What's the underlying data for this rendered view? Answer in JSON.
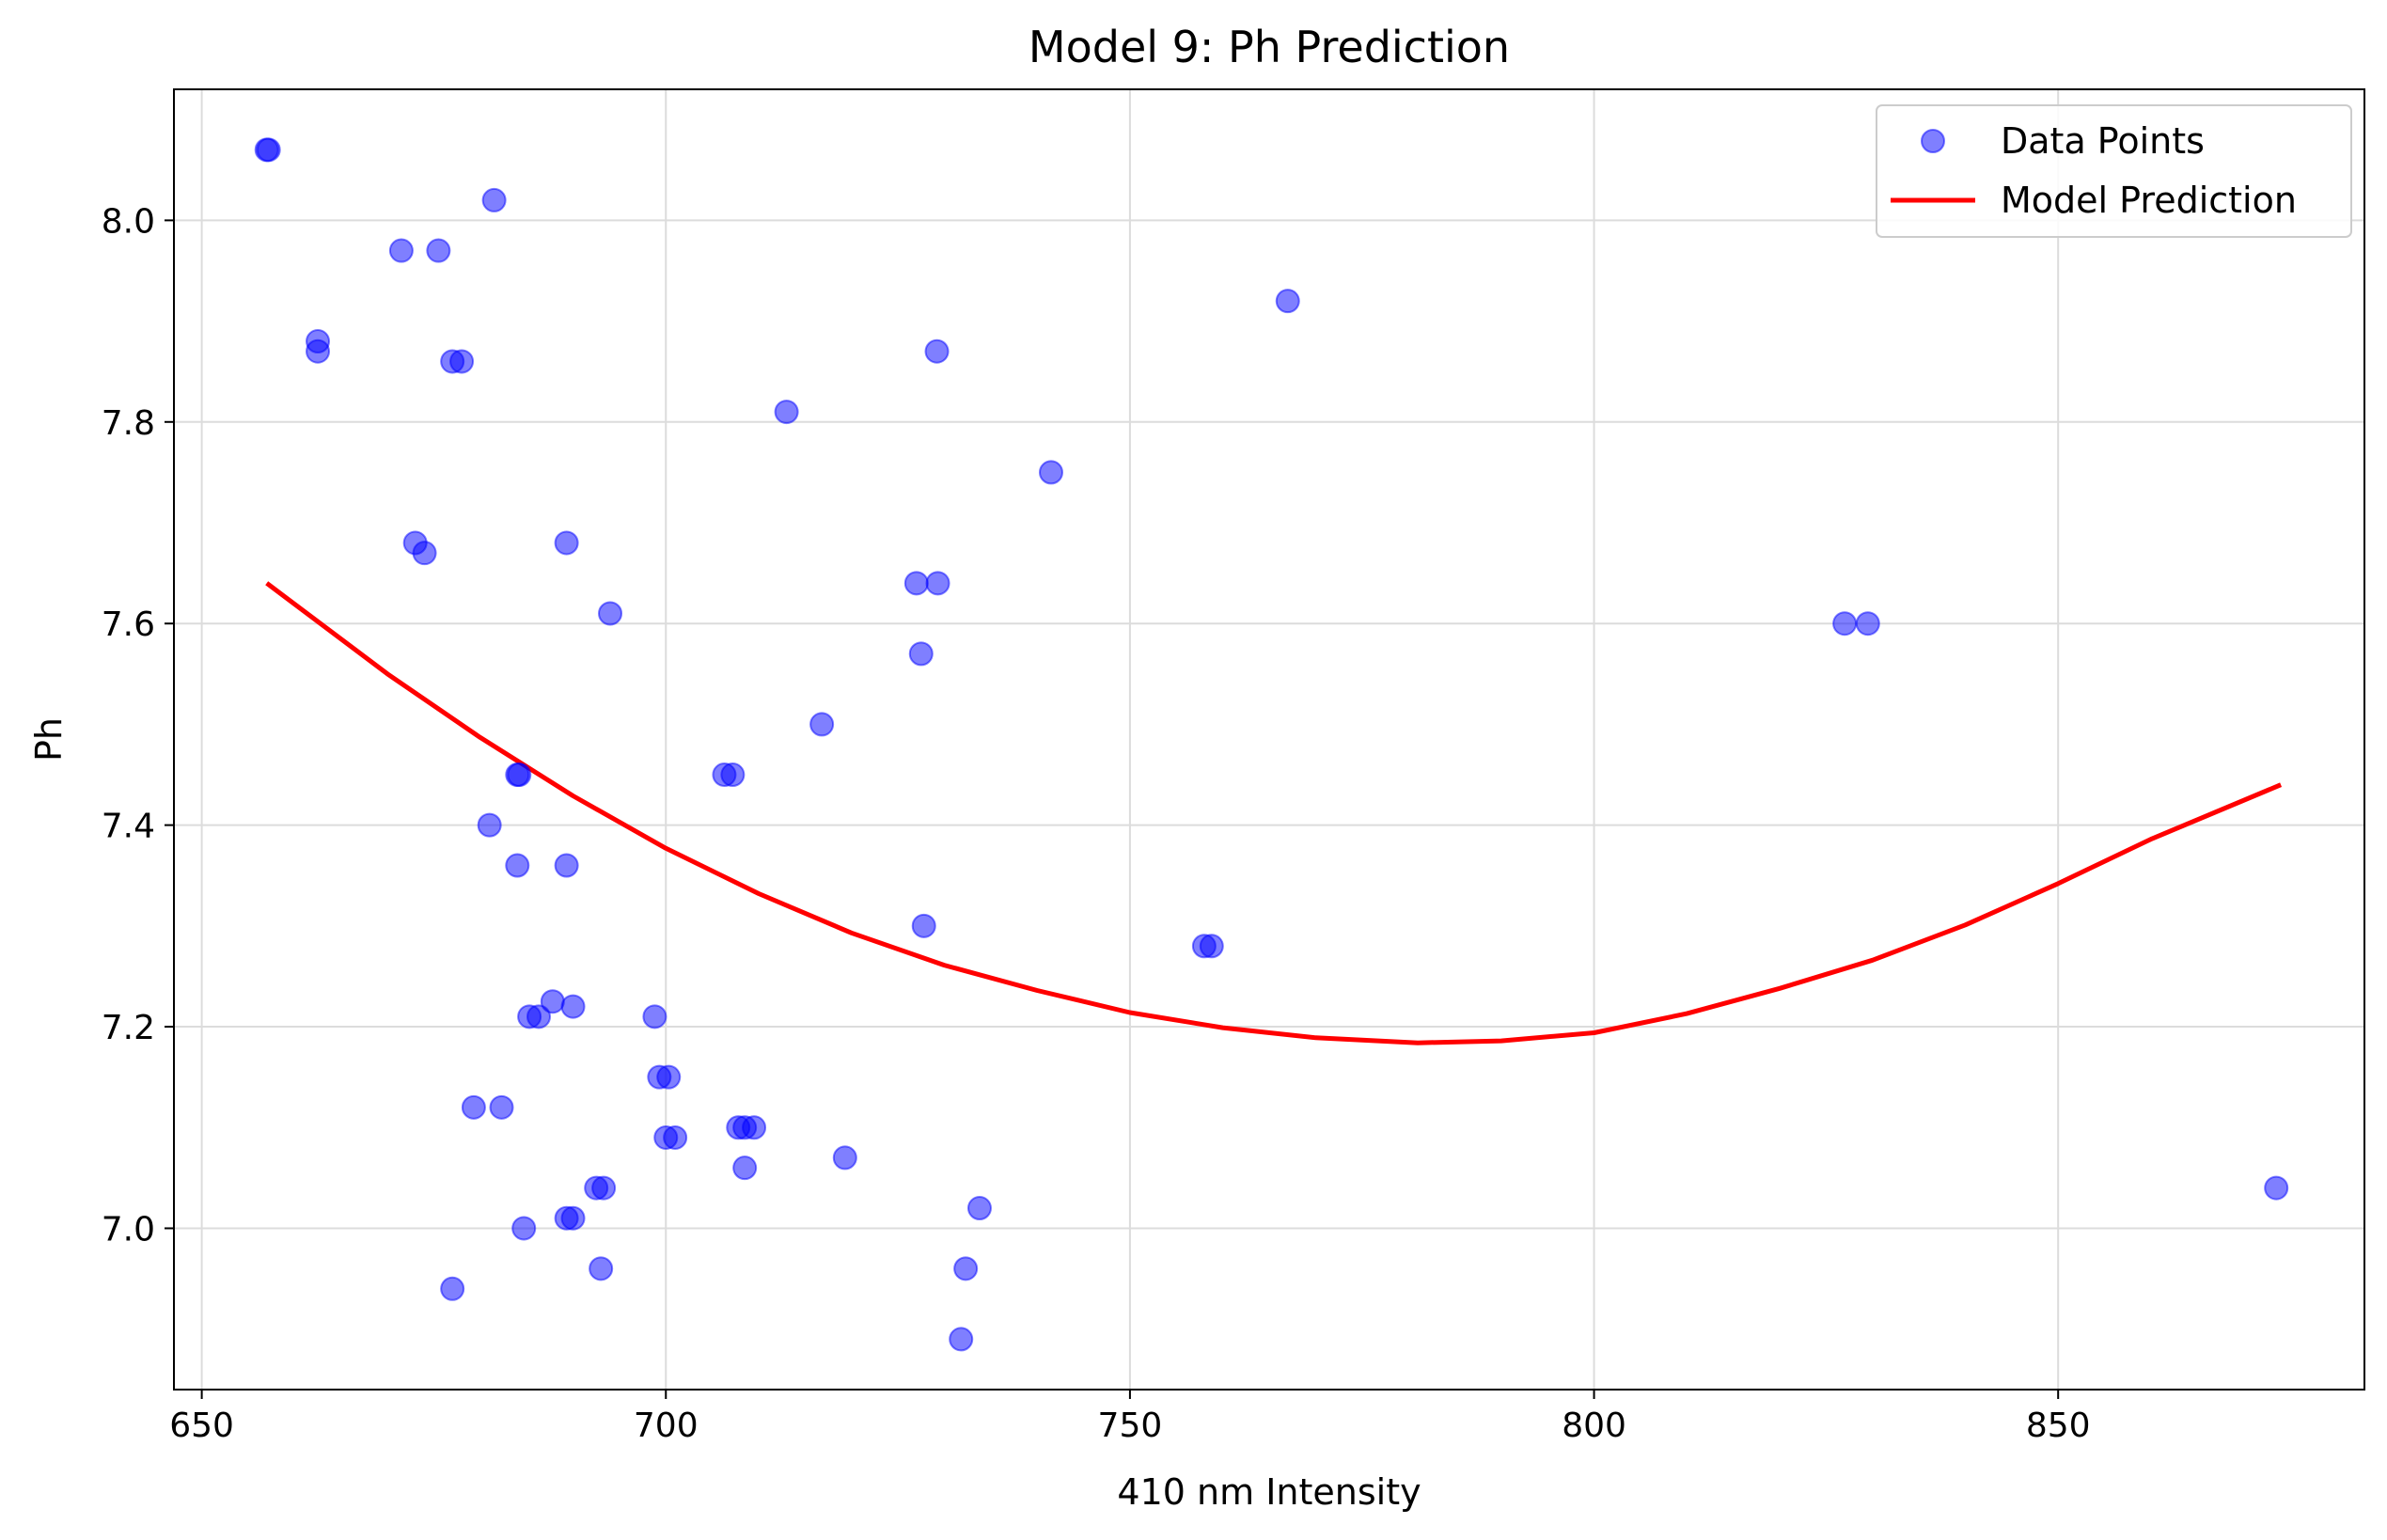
{
  "chart_data": {
    "type": "scatter",
    "title": "Model 9: Ph Prediction",
    "xlabel": "410 nm Intensity",
    "ylabel": "Ph",
    "xlim": [
      647,
      883
    ],
    "ylim": [
      6.84,
      8.13
    ],
    "xticks": [
      650,
      700,
      750,
      800,
      850
    ],
    "xtick_labels": [
      "650",
      "700",
      "750",
      "800",
      "850"
    ],
    "yticks": [
      7.0,
      7.2,
      7.4,
      7.6,
      7.8,
      8.0
    ],
    "ytick_labels": [
      "7.0",
      "7.2",
      "7.4",
      "7.6",
      "7.8",
      "8.0"
    ],
    "grid": true,
    "legend_position": "top-right",
    "series": [
      {
        "name": "Data Points",
        "kind": "scatter",
        "color": "#0000ff",
        "points": [
          {
            "x": 657.0,
            "y": 8.07
          },
          {
            "x": 657.2,
            "y": 8.07
          },
          {
            "x": 681.5,
            "y": 8.02
          },
          {
            "x": 671.5,
            "y": 7.97
          },
          {
            "x": 675.5,
            "y": 7.97
          },
          {
            "x": 767.0,
            "y": 7.92
          },
          {
            "x": 662.5,
            "y": 7.88
          },
          {
            "x": 662.5,
            "y": 7.87
          },
          {
            "x": 729.2,
            "y": 7.87
          },
          {
            "x": 677.0,
            "y": 7.86
          },
          {
            "x": 678.0,
            "y": 7.86
          },
          {
            "x": 713.0,
            "y": 7.81
          },
          {
            "x": 741.5,
            "y": 7.75
          },
          {
            "x": 673.0,
            "y": 7.68
          },
          {
            "x": 689.3,
            "y": 7.68
          },
          {
            "x": 674.0,
            "y": 7.67
          },
          {
            "x": 727.0,
            "y": 7.64
          },
          {
            "x": 729.3,
            "y": 7.64
          },
          {
            "x": 694.0,
            "y": 7.61
          },
          {
            "x": 827.0,
            "y": 7.6
          },
          {
            "x": 829.5,
            "y": 7.6
          },
          {
            "x": 727.5,
            "y": 7.57
          },
          {
            "x": 716.8,
            "y": 7.5
          },
          {
            "x": 684.0,
            "y": 7.45
          },
          {
            "x": 684.2,
            "y": 7.45
          },
          {
            "x": 706.3,
            "y": 7.45
          },
          {
            "x": 707.2,
            "y": 7.45
          },
          {
            "x": 681.0,
            "y": 7.4
          },
          {
            "x": 684.0,
            "y": 7.36
          },
          {
            "x": 689.3,
            "y": 7.36
          },
          {
            "x": 727.8,
            "y": 7.3
          },
          {
            "x": 758.0,
            "y": 7.28
          },
          {
            "x": 758.8,
            "y": 7.28
          },
          {
            "x": 687.8,
            "y": 7.225
          },
          {
            "x": 685.3,
            "y": 7.21
          },
          {
            "x": 686.3,
            "y": 7.21
          },
          {
            "x": 690.0,
            "y": 7.22
          },
          {
            "x": 698.8,
            "y": 7.21
          },
          {
            "x": 699.3,
            "y": 7.15
          },
          {
            "x": 700.3,
            "y": 7.15
          },
          {
            "x": 679.3,
            "y": 7.12
          },
          {
            "x": 682.3,
            "y": 7.12
          },
          {
            "x": 707.8,
            "y": 7.1
          },
          {
            "x": 708.5,
            "y": 7.1
          },
          {
            "x": 709.5,
            "y": 7.1
          },
          {
            "x": 700.0,
            "y": 7.09
          },
          {
            "x": 701.0,
            "y": 7.09
          },
          {
            "x": 719.3,
            "y": 7.07
          },
          {
            "x": 708.5,
            "y": 7.06
          },
          {
            "x": 692.5,
            "y": 7.04
          },
          {
            "x": 693.3,
            "y": 7.04
          },
          {
            "x": 873.5,
            "y": 7.04
          },
          {
            "x": 733.8,
            "y": 7.02
          },
          {
            "x": 689.3,
            "y": 7.01
          },
          {
            "x": 690.0,
            "y": 7.01
          },
          {
            "x": 684.7,
            "y": 7.0
          },
          {
            "x": 693.0,
            "y": 6.96
          },
          {
            "x": 732.3,
            "y": 6.96
          },
          {
            "x": 677.0,
            "y": 6.94
          },
          {
            "x": 731.8,
            "y": 6.89
          }
        ]
      },
      {
        "name": "Model Prediction",
        "kind": "line",
        "color": "#ff0000",
        "x": [
          657,
          670,
          680,
          690,
          700,
          710,
          720,
          730,
          740,
          750,
          760,
          770,
          781,
          790,
          800,
          810,
          820,
          830,
          840,
          850,
          860,
          874
        ],
        "y": [
          7.64,
          7.55,
          7.487,
          7.429,
          7.377,
          7.332,
          7.293,
          7.261,
          7.236,
          7.214,
          7.199,
          7.189,
          7.184,
          7.186,
          7.194,
          7.213,
          7.238,
          7.266,
          7.301,
          7.342,
          7.386,
          7.44
        ]
      }
    ]
  }
}
